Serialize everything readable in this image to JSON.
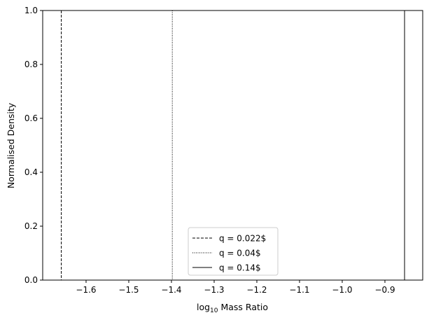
{
  "chart_data": {
    "type": "line",
    "title": "",
    "xlabel": "log",
    "xlabel_sub": "10",
    "xlabel_rest": " Mass Ratio",
    "ylabel": "Normalised Density",
    "xlim": [
      -1.7016,
      -0.8115
    ],
    "ylim": [
      0,
      1
    ],
    "xticks": [
      -1.6,
      -1.5,
      -1.4,
      -1.3,
      -1.2,
      -1.1,
      -1.0,
      -0.9
    ],
    "xtick_labels": [
      "−1.6",
      "−1.5",
      "−1.4",
      "−1.3",
      "−1.2",
      "−1.1",
      "−1.0",
      "−0.9"
    ],
    "yticks": [
      0,
      0.2,
      0.4,
      0.6,
      0.8,
      1.0
    ],
    "ytick_labels": [
      "0.0",
      "0.2",
      "0.4",
      "0.6",
      "0.8",
      "1.0"
    ],
    "grid": false,
    "legend_placement": "lower center",
    "series": [
      {
        "name": "q = 0.022$",
        "x": -1.658,
        "style": "dashed",
        "color": "#000000"
      },
      {
        "name": "q = 0.04$",
        "x": -1.398,
        "style": "dotted",
        "color": "#000000"
      },
      {
        "name": "q = 0.14$",
        "x": -0.854,
        "style": "solid",
        "color": "#000000"
      }
    ]
  }
}
